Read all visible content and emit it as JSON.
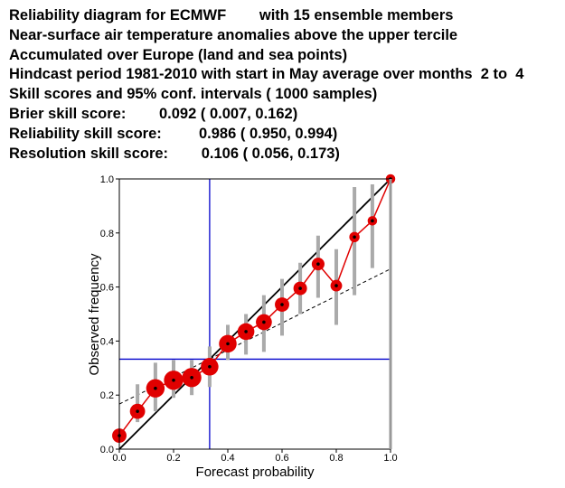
{
  "header": {
    "lines": [
      "Reliability diagram for ECMWF        with 15 ensemble members",
      "Near-surface air temperature anomalies above the upper tercile",
      "Accumulated over Europe (land and sea points)",
      "Hindcast period 1981-2010 with start in May average over months  2 to  4",
      "Skill scores and 95% conf. intervals ( 1000 samples)",
      "Brier skill score:        0.092 ( 0.007, 0.162)",
      "Reliability skill score:         0.986 ( 0.950, 0.994)",
      "Resolution skill score:        0.106 ( 0.056, 0.173)"
    ]
  },
  "chart_data": {
    "type": "scatter",
    "title": "Reliability diagram for ECMWF with 15 ensemble members",
    "xlabel": "Forecast probability",
    "ylabel": "Observed frequency",
    "xlim": [
      0,
      1
    ],
    "ylim": [
      0,
      1
    ],
    "xticks": [
      "0.0",
      "0.2",
      "0.4",
      "0.6",
      "0.8",
      "1.0"
    ],
    "yticks": [
      "0.0",
      "0.2",
      "0.4",
      "0.6",
      "0.8",
      "1.0"
    ],
    "climatology": 0.333,
    "no_skill_line": {
      "from": [
        0,
        0.167
      ],
      "to": [
        1,
        0.667
      ]
    },
    "colors": {
      "reliability": "#e00000",
      "ci": "#aaaaaa",
      "climatology": "#0000cc",
      "diagonal": "#000000"
    },
    "points": [
      {
        "x": 0.0,
        "y": 0.05,
        "lo": 0.03,
        "hi": 0.07,
        "size": 0.55
      },
      {
        "x": 0.067,
        "y": 0.14,
        "lo": 0.1,
        "hi": 0.24,
        "size": 0.6
      },
      {
        "x": 0.133,
        "y": 0.225,
        "lo": 0.14,
        "hi": 0.32,
        "size": 0.8
      },
      {
        "x": 0.2,
        "y": 0.255,
        "lo": 0.19,
        "hi": 0.33,
        "size": 0.85
      },
      {
        "x": 0.267,
        "y": 0.265,
        "lo": 0.2,
        "hi": 0.33,
        "size": 0.85
      },
      {
        "x": 0.333,
        "y": 0.305,
        "lo": 0.23,
        "hi": 0.38,
        "size": 0.75
      },
      {
        "x": 0.4,
        "y": 0.39,
        "lo": 0.33,
        "hi": 0.46,
        "size": 0.75
      },
      {
        "x": 0.467,
        "y": 0.435,
        "lo": 0.35,
        "hi": 0.5,
        "size": 0.7
      },
      {
        "x": 0.533,
        "y": 0.47,
        "lo": 0.36,
        "hi": 0.57,
        "size": 0.65
      },
      {
        "x": 0.6,
        "y": 0.535,
        "lo": 0.42,
        "hi": 0.63,
        "size": 0.55
      },
      {
        "x": 0.667,
        "y": 0.595,
        "lo": 0.5,
        "hi": 0.69,
        "size": 0.5
      },
      {
        "x": 0.733,
        "y": 0.685,
        "lo": 0.56,
        "hi": 0.79,
        "size": 0.45
      },
      {
        "x": 0.8,
        "y": 0.605,
        "lo": 0.46,
        "hi": 0.74,
        "size": 0.38
      },
      {
        "x": 0.867,
        "y": 0.785,
        "lo": 0.57,
        "hi": 0.97,
        "size": 0.3
      },
      {
        "x": 0.933,
        "y": 0.845,
        "lo": 0.67,
        "hi": 0.98,
        "size": 0.25
      },
      {
        "x": 1.0,
        "y": 1.0,
        "lo": 1.0,
        "hi": 1.0,
        "size": 0.25
      }
    ]
  }
}
